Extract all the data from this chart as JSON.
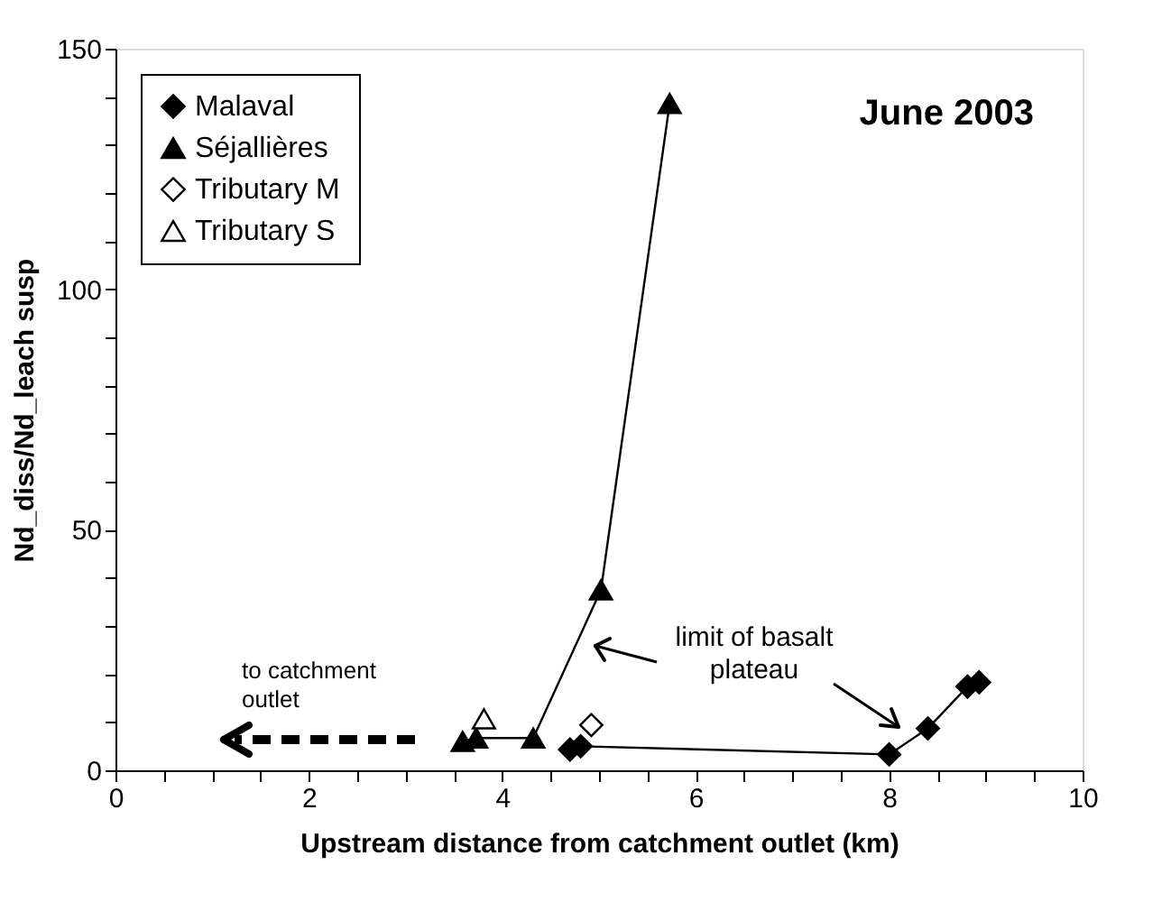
{
  "chart_data": {
    "type": "line",
    "xlabel": "Upstream distance from catchment outlet (km)",
    "ylabel": "Nd_diss/Nd_leach susp",
    "annotations": [
      "June 2003",
      "to catchment outlet",
      "limit of basalt plateau"
    ],
    "xlim": [
      0,
      10
    ],
    "ylim": [
      0,
      150
    ],
    "xticks": [
      0,
      {
        "value": 0.5,
        "label": null
      },
      {
        "value": 1,
        "label": null
      },
      {
        "value": 1.5,
        "label": null
      },
      2,
      {
        "value": 2.5,
        "label": null
      },
      {
        "value": 3,
        "label": null
      },
      {
        "value": 3.5,
        "label": null
      },
      4,
      {
        "value": 4.5,
        "label": null
      },
      {
        "value": 5,
        "label": null
      },
      {
        "value": 5.5,
        "label": null
      },
      6,
      {
        "value": 6.5,
        "label": null
      },
      {
        "value": 7,
        "label": null
      },
      {
        "value": 7.5,
        "label": null
      },
      8,
      {
        "value": 8.5,
        "label": null
      },
      {
        "value": 9,
        "label": null
      },
      {
        "value": 9.5,
        "label": null
      },
      10
    ],
    "yticks": [
      0,
      {
        "value": 10,
        "label": null
      },
      {
        "value": 20,
        "label": null
      },
      {
        "value": 30,
        "label": null
      },
      {
        "value": 40,
        "label": null
      },
      50,
      {
        "value": 60,
        "label": null
      },
      {
        "value": 70,
        "label": null
      },
      {
        "value": 80,
        "label": null
      },
      {
        "value": 90,
        "label": null
      },
      100,
      {
        "value": 110,
        "label": null
      },
      {
        "value": 120,
        "label": null
      },
      {
        "value": 130,
        "label": null
      },
      {
        "value": 140,
        "label": null
      },
      150
    ],
    "grid": false,
    "legend": "top left",
    "line_style": "solid",
    "series": [
      {
        "name": "Malaval",
        "marker": "diamond",
        "color": "#000000",
        "x": [
          4.7,
          4.81,
          8.0,
          8.4,
          8.81,
          8.93
        ],
        "values": [
          4.3,
          5.0,
          3.3,
          8.7,
          17.4,
          18.3
        ]
      },
      {
        "name": "Séjallières",
        "marker": "triangle",
        "color": "#000000",
        "x": [
          3.59,
          3.73,
          4.32,
          5.02,
          5.73
        ],
        "values": [
          6.0,
          6.7,
          6.7,
          37.5,
          138.6
        ]
      },
      {
        "name": "Tributary M",
        "type": "scatter",
        "marker": "diamond",
        "color": "#000000",
        "x": [
          4.92
        ],
        "values": [
          9.4
        ]
      },
      {
        "name": "Tributary S",
        "type": "scatter",
        "marker": "triangle",
        "color": "#000000",
        "x": [
          3.81
        ],
        "values": [
          10.7
        ]
      }
    ]
  }
}
